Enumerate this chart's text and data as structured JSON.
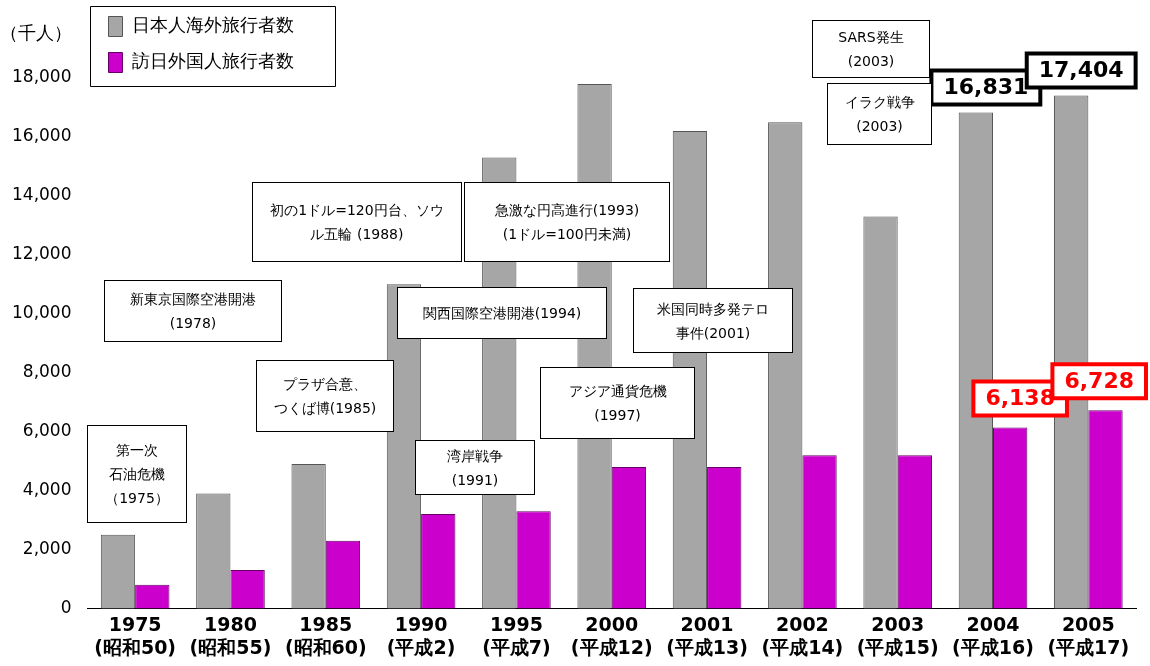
{
  "chart_data": {
    "type": "bar",
    "ylabel": "（千人）",
    "categories": [
      "1975\n(昭和50)",
      "1980\n(昭和55)",
      "1985\n(昭和60)",
      "1990\n(平成2)",
      "1995\n(平成7)",
      "2000\n(平成12)",
      "2001\n(平成13)",
      "2002\n(平成14)",
      "2003\n(平成15)",
      "2004\n(平成16)",
      "2005\n(平成17)"
    ],
    "series": [
      {
        "name": "日本人海外旅行者数",
        "color": "#a6a6a6",
        "values": [
          2500,
          3900,
          4900,
          11000,
          15300,
          17800,
          16200,
          16500,
          13300,
          16831,
          17404
        ],
        "value_labels": [
          null,
          null,
          null,
          null,
          null,
          null,
          null,
          null,
          null,
          "16,831",
          "17,404"
        ]
      },
      {
        "name": "訪日外国人旅行者数",
        "color": "#cc00cc",
        "values": [
          800,
          1300,
          2300,
          3200,
          3300,
          4800,
          4800,
          5200,
          5200,
          6138,
          6728
        ],
        "value_labels": [
          null,
          null,
          null,
          null,
          null,
          null,
          null,
          null,
          null,
          "6,138",
          "6,728"
        ]
      }
    ],
    "ylim": [
      0,
      18000
    ],
    "yticks": [
      {
        "value": 0,
        "label": "0"
      },
      {
        "value": 2000,
        "label": "2,000"
      },
      {
        "value": 4000,
        "label": "4,000"
      },
      {
        "value": 6000,
        "label": "6,000"
      },
      {
        "value": 8000,
        "label": "8,000"
      },
      {
        "value": 10000,
        "label": "10,000"
      },
      {
        "value": 12000,
        "label": "12,000"
      },
      {
        "value": 14000,
        "label": "14,000"
      },
      {
        "value": 16000,
        "label": "16,000"
      },
      {
        "value": 18000,
        "label": "18,000"
      }
    ],
    "grid": false,
    "legend": "top left",
    "annotations": [
      "第一次石油危機（1975）",
      "新東京国際空港開港\n(1978)",
      "プラザ合意、つくば博(1985)",
      "初の1ドル=120円台、ソウル五輪 (1988)",
      "湾岸戦争\n(1991)",
      "関西国際空港開港(1994)",
      "急激な円高進行(1993)\n(1ドル=100円未満)",
      "アジア通貨危機\n(1997)",
      "米国同時多発テロ事件(2001)",
      "SARS発生\n(2003)",
      "イラク戦争\n(2003)"
    ]
  }
}
